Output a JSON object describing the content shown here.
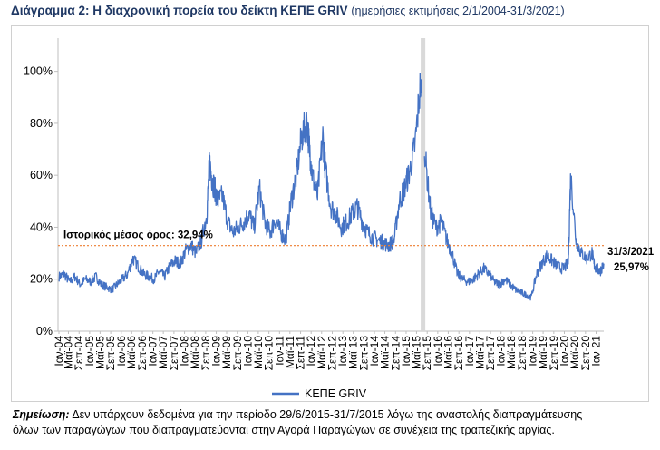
{
  "title": {
    "main": "Διάγραμμα 2: Η διαχρονική πορεία του δείκτη ΚΕΠΕ GRIV",
    "sub": "(ημερήσιες εκτιμήσεις 2/1/2004-31/3/2021)"
  },
  "note": {
    "label": "Σημείωση:",
    "line1": "Δεν υπάρχουν δεδομένα για την περίοδο 29/6/2015-31/7/2015 λόγω της αναστολής διαπραγμάτευσης",
    "line2": "όλων των παραγώγων που διαπραγματεύονται στην Αγορά Παραγώγων σε συνέχεια της τραπεζικής αργίας."
  },
  "colors": {
    "series": "#4472c4",
    "mean_line": "#ed7d31",
    "gap_band": "#d9d9d9",
    "axis": "#bfbfbf",
    "title": "#1f3864"
  },
  "chart_data": {
    "type": "line",
    "ylim": [
      0,
      110
    ],
    "yticks": [
      0,
      20,
      40,
      60,
      80,
      100
    ],
    "ytick_labels": [
      "0%",
      "20%",
      "40%",
      "60%",
      "80%",
      "100%"
    ],
    "x_range": [
      "2004-01-02",
      "2021-03-31"
    ],
    "x_tick_labels": [
      "Ιαν-04",
      "Μαϊ-04",
      "Σεπ-04",
      "Ιαν-05",
      "Μαϊ-05",
      "Σεπ-05",
      "Ιαν-06",
      "Μαϊ-06",
      "Σεπ-06",
      "Ιαν-07",
      "Μαϊ-07",
      "Σεπ-07",
      "Ιαν-08",
      "Μαϊ-08",
      "Σεπ-08",
      "Ιαν-09",
      "Μαϊ-09",
      "Σεπ-09",
      "Ιαν-10",
      "Μαϊ-10",
      "Σεπ-10",
      "Ιαν-11",
      "Μαϊ-11",
      "Σεπ-11",
      "Ιαν-12",
      "Μαϊ-12",
      "Σεπ-12",
      "Ιαν-13",
      "Μαϊ-13",
      "Σεπ-13",
      "Ιαν-14",
      "Μαϊ-14",
      "Σεπ-14",
      "Ιαν-15",
      "Μαϊ-15",
      "Σεπ-15",
      "Ιαν-16",
      "Μαϊ-16",
      "Σεπ-16",
      "Ιαν-17",
      "Μαϊ-17",
      "Σεπ-17",
      "Ιαν-18",
      "Μαϊ-18",
      "Σεπ-18",
      "Ιαν-19",
      "Μαϊ-19",
      "Σεπ-19",
      "Ιαν-20",
      "Μαϊ-20",
      "Σεπ-20",
      "Ιαν-21"
    ],
    "legend": {
      "label": "ΚΕΠΕ GRIV",
      "position": "bottom"
    },
    "historical_mean": {
      "value": 32.94,
      "label": "Ιστορικός μέσος όρος: 32,94%"
    },
    "last_point": {
      "date_label": "31/3/2021",
      "value_label": "25,97%",
      "value": 25.97
    },
    "gap_period": [
      "2015-06-29",
      "2015-07-31"
    ],
    "series": [
      {
        "name": "ΚΕΠΕ GRIV",
        "points": [
          [
            "2004-01",
            21
          ],
          [
            "2004-03",
            22
          ],
          [
            "2004-05",
            19
          ],
          [
            "2004-07",
            21
          ],
          [
            "2004-09",
            18
          ],
          [
            "2004-11",
            20
          ],
          [
            "2005-01",
            19
          ],
          [
            "2005-03",
            21
          ],
          [
            "2005-05",
            18
          ],
          [
            "2005-07",
            17
          ],
          [
            "2005-09",
            16
          ],
          [
            "2005-11",
            18
          ],
          [
            "2006-01",
            20
          ],
          [
            "2006-03",
            22
          ],
          [
            "2006-05",
            28
          ],
          [
            "2006-07",
            25
          ],
          [
            "2006-09",
            22
          ],
          [
            "2006-11",
            21
          ],
          [
            "2007-01",
            20
          ],
          [
            "2007-03",
            23
          ],
          [
            "2007-05",
            21
          ],
          [
            "2007-07",
            25
          ],
          [
            "2007-09",
            27
          ],
          [
            "2007-11",
            26
          ],
          [
            "2008-01",
            31
          ],
          [
            "2008-03",
            33
          ],
          [
            "2008-05",
            30
          ],
          [
            "2008-07",
            35
          ],
          [
            "2008-09",
            45
          ],
          [
            "2008-10",
            65
          ],
          [
            "2008-11",
            58
          ],
          [
            "2008-12",
            55
          ],
          [
            "2009-01",
            50
          ],
          [
            "2009-03",
            52
          ],
          [
            "2009-05",
            42
          ],
          [
            "2009-07",
            38
          ],
          [
            "2009-09",
            40
          ],
          [
            "2009-11",
            42
          ],
          [
            "2010-01",
            45
          ],
          [
            "2010-03",
            40
          ],
          [
            "2010-05",
            55
          ],
          [
            "2010-07",
            42
          ],
          [
            "2010-09",
            38
          ],
          [
            "2010-11",
            43
          ],
          [
            "2011-01",
            38
          ],
          [
            "2011-03",
            35
          ],
          [
            "2011-05",
            50
          ],
          [
            "2011-07",
            60
          ],
          [
            "2011-09",
            75
          ],
          [
            "2011-11",
            80
          ],
          [
            "2011-12",
            70
          ],
          [
            "2012-01",
            60
          ],
          [
            "2012-03",
            52
          ],
          [
            "2012-05",
            75
          ],
          [
            "2012-06",
            62
          ],
          [
            "2012-08",
            48
          ],
          [
            "2012-10",
            45
          ],
          [
            "2012-12",
            40
          ],
          [
            "2013-02",
            42
          ],
          [
            "2013-04",
            45
          ],
          [
            "2013-06",
            48
          ],
          [
            "2013-08",
            42
          ],
          [
            "2013-10",
            38
          ],
          [
            "2013-12",
            36
          ],
          [
            "2014-02",
            35
          ],
          [
            "2014-04",
            34
          ],
          [
            "2014-06",
            33
          ],
          [
            "2014-08",
            35
          ],
          [
            "2014-10",
            50
          ],
          [
            "2014-12",
            55
          ],
          [
            "2015-02",
            62
          ],
          [
            "2015-04",
            72
          ],
          [
            "2015-06",
            95
          ],
          [
            "2015-08",
            65
          ],
          [
            "2015-10",
            45
          ],
          [
            "2015-12",
            40
          ],
          [
            "2016-02",
            42
          ],
          [
            "2016-04",
            35
          ],
          [
            "2016-06",
            30
          ],
          [
            "2016-08",
            22
          ],
          [
            "2016-10",
            20
          ],
          [
            "2016-12",
            19
          ],
          [
            "2017-02",
            20
          ],
          [
            "2017-04",
            22
          ],
          [
            "2017-06",
            24
          ],
          [
            "2017-08",
            22
          ],
          [
            "2017-10",
            19
          ],
          [
            "2017-12",
            18
          ],
          [
            "2018-02",
            20
          ],
          [
            "2018-04",
            18
          ],
          [
            "2018-06",
            16
          ],
          [
            "2018-08",
            15
          ],
          [
            "2018-10",
            14
          ],
          [
            "2018-12",
            13
          ],
          [
            "2019-02",
            22
          ],
          [
            "2019-04",
            26
          ],
          [
            "2019-06",
            29
          ],
          [
            "2019-08",
            27
          ],
          [
            "2019-10",
            25
          ],
          [
            "2019-12",
            24
          ],
          [
            "2020-02",
            26
          ],
          [
            "2020-03",
            60
          ],
          [
            "2020-05",
            35
          ],
          [
            "2020-07",
            30
          ],
          [
            "2020-09",
            28
          ],
          [
            "2020-11",
            30
          ],
          [
            "2020-12",
            25
          ],
          [
            "2021-01",
            24
          ],
          [
            "2021-02",
            23
          ],
          [
            "2021-03",
            25.97
          ]
        ]
      }
    ]
  }
}
